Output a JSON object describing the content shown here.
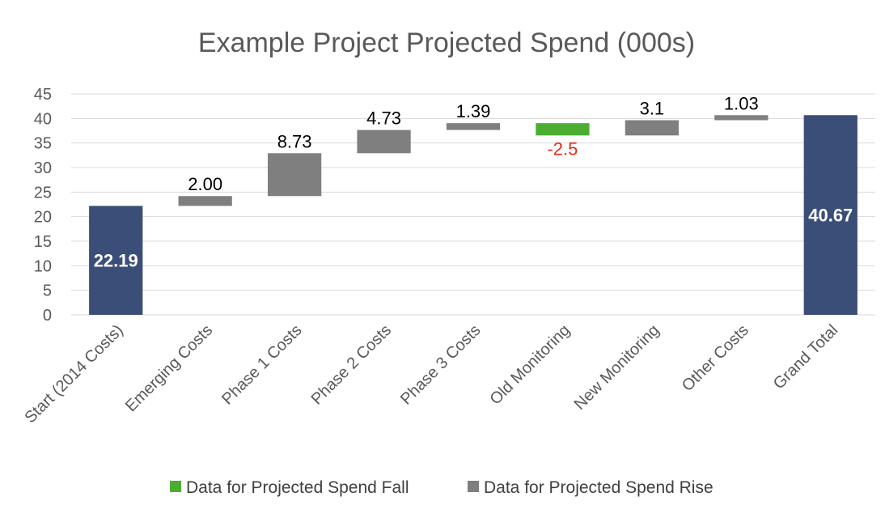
{
  "chart_data": {
    "type": "bar",
    "subtype": "waterfall",
    "title": "Example Project Projected Spend (000s)",
    "xlabel": "",
    "ylabel": "",
    "ylim": [
      0,
      45
    ],
    "yticks": [
      0,
      5,
      10,
      15,
      20,
      25,
      30,
      35,
      40,
      45
    ],
    "grid": true,
    "legend_position": "bottom",
    "categories": [
      "Start (2014 Costs)",
      "Emerging Costs",
      "Phase 1 Costs",
      "Phase 2 Costs",
      "Phase 3 Costs",
      "Old Monitoring",
      "New Monitoring",
      "Other Costs",
      "Grand Total"
    ],
    "bars": [
      {
        "category": "Start (2014 Costs)",
        "kind": "total",
        "base": 0,
        "value": 22.19,
        "label": "22.19"
      },
      {
        "category": "Emerging Costs",
        "kind": "rise",
        "base": 22.19,
        "value": 2.0,
        "label": "2.00"
      },
      {
        "category": "Phase 1 Costs",
        "kind": "rise",
        "base": 24.19,
        "value": 8.73,
        "label": "8.73"
      },
      {
        "category": "Phase 2 Costs",
        "kind": "rise",
        "base": 32.92,
        "value": 4.73,
        "label": "4.73"
      },
      {
        "category": "Phase 3 Costs",
        "kind": "rise",
        "base": 37.65,
        "value": 1.39,
        "label": "1.39"
      },
      {
        "category": "Old Monitoring",
        "kind": "fall",
        "base": 39.04,
        "value": -2.5,
        "label": "-2.5"
      },
      {
        "category": "New Monitoring",
        "kind": "rise",
        "base": 36.54,
        "value": 3.1,
        "label": "3.1"
      },
      {
        "category": "Other Costs",
        "kind": "rise",
        "base": 39.64,
        "value": 1.03,
        "label": "1.03"
      },
      {
        "category": "Grand Total",
        "kind": "total",
        "base": 0,
        "value": 40.67,
        "label": "40.67"
      }
    ],
    "series": [
      {
        "name": "Data for Projected Spend Fall",
        "color": "#4cae31"
      },
      {
        "name": "Data for Projected Spend Rise",
        "color": "#7f7f7f"
      }
    ],
    "colors": {
      "total": "#3b4e78",
      "rise": "#7f7f7f",
      "fall": "#4cae31",
      "negative_label": "#e8281e"
    }
  }
}
